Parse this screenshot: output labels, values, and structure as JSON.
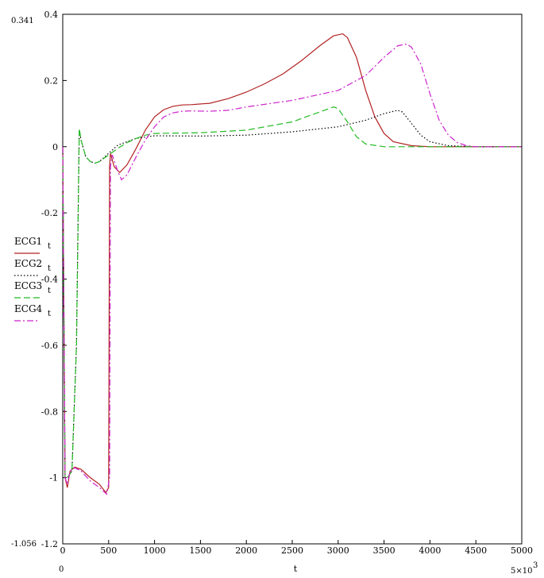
{
  "chart_data": {
    "type": "line",
    "xlabel": "t",
    "xlim": [
      0,
      5000
    ],
    "ylim": [
      -1.2,
      0.4
    ],
    "grid": false,
    "legend_placement": "left",
    "x_ticks": [
      "0",
      "500",
      "1000",
      "1500",
      "2000",
      "2500",
      "3000",
      "3500",
      "4000",
      "4500",
      "5000"
    ],
    "y_ticks": [
      "0.4",
      "0.2",
      "0",
      "-0.2",
      "-0.4",
      "-0.6",
      "-0.8",
      "-1",
      "-1.2"
    ],
    "annotations": {
      "ymax_value": "0.341",
      "ymin_value": "-1.056",
      "xmin_value": "0",
      "xmax_value": "5×10",
      "xmax_exponent": "3"
    },
    "series": [
      {
        "name": "ECG1",
        "subscript": "t",
        "color": "#b22222",
        "dash": "solid",
        "x": [
          0,
          25,
          50,
          80,
          130,
          200,
          300,
          400,
          470,
          500,
          510,
          520,
          560,
          620,
          700,
          800,
          900,
          1000,
          1100,
          1200,
          1300,
          1400,
          1600,
          1800,
          2000,
          2200,
          2400,
          2600,
          2800,
          2950,
          3050,
          3100,
          3200,
          3300,
          3400,
          3500,
          3600,
          3800,
          4000,
          4200,
          4500,
          5000
        ],
        "y": [
          0,
          -1.0,
          -1.03,
          -0.98,
          -0.968,
          -0.975,
          -1.0,
          -1.02,
          -1.045,
          -1.03,
          -0.06,
          -0.02,
          -0.06,
          -0.078,
          -0.055,
          -0.005,
          0.05,
          0.09,
          0.112,
          0.122,
          0.126,
          0.127,
          0.131,
          0.145,
          0.165,
          0.19,
          0.22,
          0.26,
          0.305,
          0.335,
          0.341,
          0.33,
          0.27,
          0.17,
          0.09,
          0.04,
          0.015,
          0.003,
          0.0,
          0.0,
          0.0,
          0.0
        ]
      },
      {
        "name": "ECG2",
        "subscript": "t",
        "color": "#000000",
        "dash": "dotted",
        "x": [
          0,
          25,
          50,
          100,
          150,
          180,
          200,
          250,
          300,
          350,
          400,
          500,
          600,
          800,
          1000,
          1500,
          2000,
          2500,
          3000,
          3300,
          3500,
          3650,
          3700,
          3800,
          3900,
          4000,
          4200,
          4500,
          5000
        ],
        "y": [
          0,
          -1.0,
          -1.0,
          -0.98,
          -0.6,
          0.05,
          0.02,
          -0.03,
          -0.045,
          -0.05,
          -0.045,
          -0.02,
          0.005,
          0.025,
          0.033,
          0.032,
          0.035,
          0.045,
          0.06,
          0.08,
          0.1,
          0.11,
          0.105,
          0.07,
          0.035,
          0.015,
          0.003,
          0.0,
          0.0
        ]
      },
      {
        "name": "ECG3",
        "subscript": "t",
        "color": "#22bb22",
        "dash": "dashed",
        "x": [
          0,
          25,
          50,
          100,
          150,
          180,
          200,
          250,
          300,
          350,
          400,
          500,
          600,
          700,
          800,
          900,
          1000,
          1500,
          2000,
          2500,
          2800,
          2950,
          3000,
          3100,
          3200,
          3300,
          3500,
          4000,
          4500,
          5000
        ],
        "y": [
          0,
          -1.0,
          -1.0,
          -0.98,
          -0.6,
          0.055,
          0.02,
          -0.03,
          -0.045,
          -0.05,
          -0.045,
          -0.025,
          -0.005,
          0.012,
          0.025,
          0.035,
          0.04,
          0.042,
          0.05,
          0.075,
          0.105,
          0.12,
          0.115,
          0.075,
          0.03,
          0.008,
          0.0,
          0.0,
          0.0,
          0.0
        ]
      },
      {
        "name": "ECG4",
        "subscript": "t",
        "color": "#cc22cc",
        "dash": "dashdot",
        "x": [
          0,
          25,
          50,
          80,
          130,
          200,
          300,
          400,
          480,
          510,
          520,
          540,
          600,
          640,
          700,
          800,
          900,
          1000,
          1100,
          1200,
          1300,
          1400,
          1600,
          1800,
          2000,
          2500,
          3000,
          3300,
          3500,
          3650,
          3750,
          3800,
          3900,
          4000,
          4100,
          4200,
          4300,
          4400,
          4500,
          5000
        ],
        "y": [
          0,
          -1.0,
          -1.02,
          -0.98,
          -0.97,
          -0.98,
          -1.01,
          -1.03,
          -1.05,
          -1.0,
          -0.06,
          -0.025,
          -0.075,
          -0.1,
          -0.085,
          -0.03,
          0.02,
          0.06,
          0.09,
          0.102,
          0.107,
          0.108,
          0.107,
          0.11,
          0.12,
          0.14,
          0.17,
          0.215,
          0.27,
          0.305,
          0.31,
          0.3,
          0.25,
          0.16,
          0.08,
          0.035,
          0.012,
          0.003,
          0.0,
          0.0
        ]
      }
    ]
  }
}
